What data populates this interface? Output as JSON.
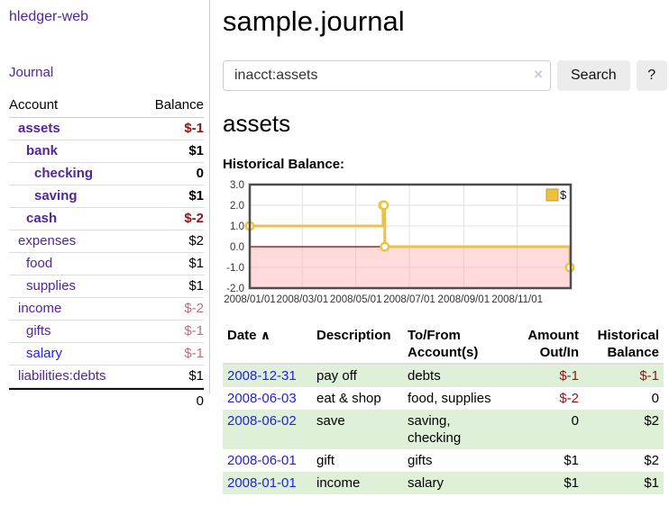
{
  "app": {
    "brand": "hledger-web"
  },
  "colors": {
    "accent_purple": "#52259a",
    "link_blue": "#2222e0",
    "negative_strong": "#8e1515",
    "negative_soft": "#b9707c",
    "row_green": "#dff0d8",
    "chart_line": "#edc240"
  },
  "sidebar": {
    "journal_link": "Journal",
    "table": {
      "headers": [
        "Account",
        "Balance"
      ],
      "rows": [
        {
          "label": "assets",
          "balance": "$-1",
          "indent": 1,
          "bold": true,
          "balance_style": "neg-strong",
          "link_style": "purple"
        },
        {
          "label": "bank",
          "balance": "$1",
          "indent": 2,
          "bold": true,
          "balance_style": "pos",
          "link_style": "purple"
        },
        {
          "label": "checking",
          "balance": "0",
          "indent": 3,
          "bold": true,
          "balance_style": "pos",
          "link_style": "purple"
        },
        {
          "label": "saving",
          "balance": "$1",
          "indent": 3,
          "bold": true,
          "balance_style": "pos",
          "link_style": "purple"
        },
        {
          "label": "cash",
          "balance": "$-2",
          "indent": 2,
          "bold": true,
          "balance_style": "neg-strong",
          "link_style": "purple"
        },
        {
          "label": "expenses",
          "balance": "$2",
          "indent": 1,
          "bold": false,
          "balance_style": "pos",
          "link_style": "purple"
        },
        {
          "label": "food",
          "balance": "$1",
          "indent": 2,
          "bold": false,
          "balance_style": "pos",
          "link_style": "purple"
        },
        {
          "label": "supplies",
          "balance": "$1",
          "indent": 2,
          "bold": false,
          "balance_style": "pos",
          "link_style": "purple"
        },
        {
          "label": "income",
          "balance": "$-2",
          "indent": 1,
          "bold": false,
          "balance_style": "neg-soft",
          "link_style": "purple"
        },
        {
          "label": "gifts",
          "balance": "$-1",
          "indent": 2,
          "bold": false,
          "balance_style": "neg-soft",
          "link_style": "purple"
        },
        {
          "label": "salary",
          "balance": "$-1",
          "indent": 2,
          "bold": false,
          "balance_style": "neg-soft",
          "link_style": "blue"
        },
        {
          "label": "liabilities:debts",
          "balance": "$1",
          "indent": 1,
          "bold": false,
          "balance_style": "pos",
          "link_style": "purple"
        }
      ],
      "total": "0"
    }
  },
  "main": {
    "title": "sample.journal",
    "search": {
      "value": "inacct:assets",
      "clear_icon": "×",
      "button_label": "Search",
      "help_label": "?"
    },
    "account_heading": "assets",
    "chart_label": "Historical Balance:"
  },
  "chart_data": {
    "type": "line",
    "step": true,
    "title": "Historical Balance:",
    "series": [
      {
        "name": "$",
        "color": "#edc240",
        "points": [
          {
            "date": "2008-01-01",
            "day": 0,
            "value": 1
          },
          {
            "date": "2008-06-01",
            "day": 152,
            "value": 2
          },
          {
            "date": "2008-06-02",
            "day": 153,
            "value": 2
          },
          {
            "date": "2008-06-03",
            "day": 154,
            "value": 0
          },
          {
            "date": "2008-12-31",
            "day": 365,
            "value": -1
          }
        ]
      }
    ],
    "x_ticks": [
      {
        "label": "2008/01/01",
        "day": 0
      },
      {
        "label": "2008/03/01",
        "day": 60
      },
      {
        "label": "2008/05/01",
        "day": 121
      },
      {
        "label": "2008/07/01",
        "day": 182
      },
      {
        "label": "2008/09/01",
        "day": 244
      },
      {
        "label": "2008/11/01",
        "day": 305
      }
    ],
    "y_ticks": [
      -2.0,
      -1.0,
      0.0,
      1.0,
      2.0,
      3.0
    ],
    "x_range_days": [
      0,
      366
    ],
    "ylim": [
      -2,
      3
    ],
    "legend": {
      "label": "$",
      "position": "top-right"
    },
    "grid": true,
    "grid_color": "#e2e2e2",
    "zero_line_color": "#8b0000",
    "negative_region_color": "rgba(255,160,160,0.38)",
    "border_color": "#4d4d4d",
    "marker_fill": "#ffffff"
  },
  "register": {
    "headers": {
      "date": "Date",
      "sort_icon": "∧",
      "description": "Description",
      "accounts": "To/From Account(s)",
      "amount": "Amount Out/In",
      "balance": "Historical Balance"
    },
    "rows": [
      {
        "date": "2008-12-31",
        "description": "pay off",
        "accounts": "debts",
        "amount": "$-1",
        "amount_neg": true,
        "balance": "$-1",
        "balance_neg": true,
        "striped": true
      },
      {
        "date": "2008-06-03",
        "description": "eat & shop",
        "accounts": "food, supplies",
        "amount": "$-2",
        "amount_neg": true,
        "balance": "0",
        "balance_neg": false,
        "striped": false
      },
      {
        "date": "2008-06-02",
        "description": "save",
        "accounts": "saving, checking",
        "amount": "0",
        "amount_neg": false,
        "balance": "$2",
        "balance_neg": false,
        "striped": true
      },
      {
        "date": "2008-06-01",
        "description": "gift",
        "accounts": "gifts",
        "amount": "$1",
        "amount_neg": false,
        "balance": "$2",
        "balance_neg": false,
        "striped": false
      },
      {
        "date": "2008-01-01",
        "description": "income",
        "accounts": "salary",
        "amount": "$1",
        "amount_neg": false,
        "balance": "$1",
        "balance_neg": false,
        "striped": true
      }
    ]
  }
}
